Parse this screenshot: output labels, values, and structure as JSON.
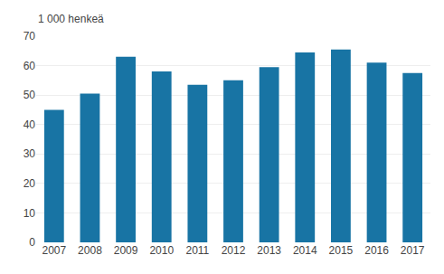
{
  "chart_data": {
    "type": "bar",
    "ylabel": "1 000 henkeä",
    "categories": [
      "2007",
      "2008",
      "2009",
      "2010",
      "2011",
      "2012",
      "2013",
      "2014",
      "2015",
      "2016",
      "2017"
    ],
    "values": [
      45.0,
      50.5,
      63.0,
      58.0,
      53.5,
      55.0,
      59.5,
      64.5,
      65.5,
      61.0,
      57.5
    ],
    "color": "#1874a4",
    "ylim": [
      0,
      70
    ],
    "yticks": [
      0,
      10,
      20,
      30,
      40,
      50,
      60,
      70
    ],
    "grid": true
  }
}
